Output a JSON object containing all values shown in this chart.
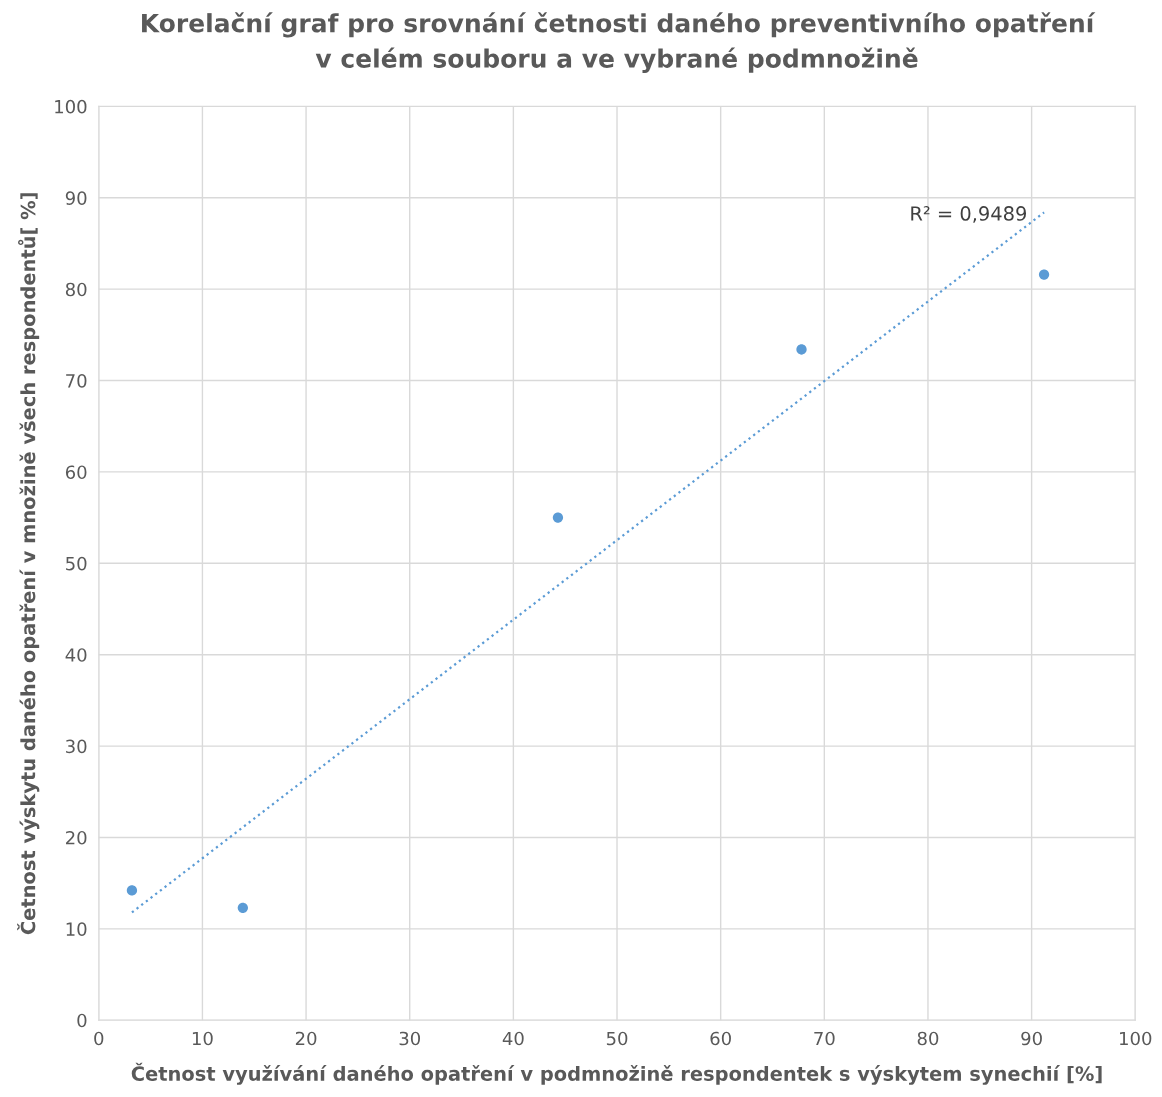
{
  "chart_data": {
    "type": "scatter",
    "title": "Korelační graf pro srovnání četnosti daného preventivního opatření\nv celém souboru a ve vybrané podmnožině",
    "xlabel": "Četnost využívání daného opatření v podmnožině respondentek s výskytem synechií [%]",
    "ylabel": "Četnost výskytu daného opatření v množině všech respondentů[ %]",
    "series": [
      {
        "color": "#5b9bd5",
        "marker": "circle",
        "x": [
          3.2,
          13.9,
          44.3,
          67.8,
          91.2
        ],
        "values": [
          14.2,
          12.3,
          55.0,
          73.4,
          81.6
        ]
      },
      {
        "type": "line",
        "color": "#5b9bd5",
        "line_style": "dotted",
        "marker": "none",
        "x": [
          3.2,
          91.2
        ],
        "values": [
          11.8,
          88.4
        ]
      }
    ],
    "annotations": [
      {
        "text": "R² = 0,9489",
        "x": 91.2,
        "y": 88.4
      }
    ],
    "xlim": [
      0,
      100
    ],
    "ylim": [
      0,
      100
    ],
    "xticks": [
      0,
      10,
      20,
      30,
      40,
      50,
      60,
      70,
      80,
      90,
      100
    ],
    "yticks": [
      0,
      10,
      20,
      30,
      40,
      50,
      60,
      70,
      80,
      90,
      100
    ],
    "grid": true,
    "legend": false
  }
}
